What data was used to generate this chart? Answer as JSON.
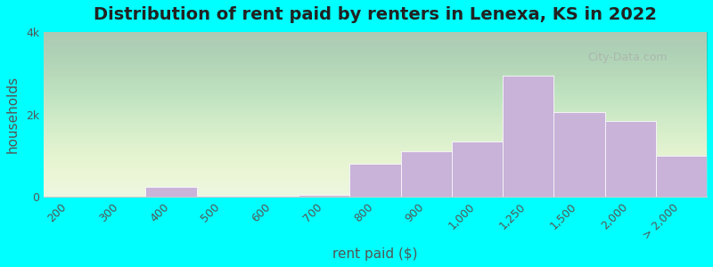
{
  "title": "Distribution of rent paid by renters in Lenexa, KS in 2022",
  "xlabel": "rent paid ($)",
  "ylabel": "households",
  "background_color": "#00FFFF",
  "plot_bg_color_top": "#e8f5e0",
  "plot_bg_color_bottom": "#f5fff0",
  "bar_color": "#c9b3d9",
  "bar_edge_color": "#ffffff",
  "categories": [
    "200",
    "300",
    "400",
    "500",
    "600",
    "700",
    "800",
    "900",
    "1,000",
    "1,250",
    "1,500",
    "2,000",
    "> 2,000"
  ],
  "values": [
    20,
    10,
    250,
    30,
    30,
    50,
    800,
    1100,
    1350,
    2950,
    2050,
    1850,
    1000
  ],
  "ylim": [
    0,
    4000
  ],
  "yticks": [
    0,
    2000,
    4000
  ],
  "ytick_labels": [
    "0",
    "2k",
    "4k"
  ],
  "bar_width": 1.0,
  "title_fontsize": 14,
  "axis_label_fontsize": 11,
  "tick_fontsize": 9,
  "watermark_text": "City-Data.com"
}
